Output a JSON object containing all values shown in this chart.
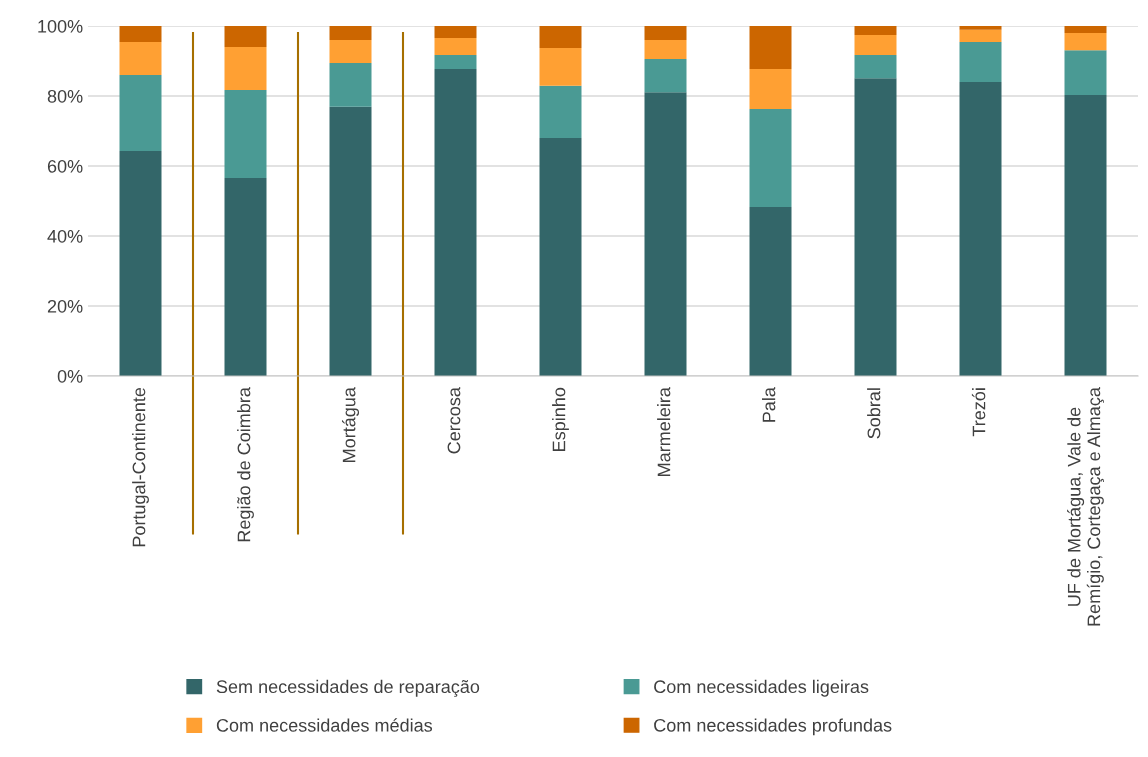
{
  "chart_data": {
    "type": "bar",
    "stacked": true,
    "categories": [
      "Portugal-Continente",
      "Região de Coimbra",
      "Mortágua",
      "Cercosa",
      "Espinho",
      "Marmeleira",
      "Pala",
      "Sobral",
      "Trezói",
      "UF de Mortágua, Vale de\nRemígio, Cortegaça e Almaça"
    ],
    "series": [
      {
        "name": "Sem necessidades de reparação",
        "color": "#336669",
        "values": [
          64.3,
          56.6,
          76.9,
          87.7,
          68.0,
          81.1,
          48.3,
          85.1,
          84.0,
          80.3
        ]
      },
      {
        "name": "Com necessidades ligeiras",
        "color": "#4a9a94",
        "values": [
          21.7,
          25.1,
          12.5,
          4.0,
          14.9,
          9.5,
          28.0,
          6.6,
          11.4,
          12.8
        ]
      },
      {
        "name": "Com necessidades médias",
        "color": "#ffa033",
        "values": [
          9.4,
          12.3,
          6.6,
          4.9,
          10.8,
          5.4,
          11.4,
          5.7,
          3.5,
          4.9
        ]
      },
      {
        "name": "Com necessidades profundas",
        "color": "#cc6600",
        "values": [
          4.6,
          6.0,
          4.0,
          3.4,
          6.3,
          4.0,
          12.3,
          2.6,
          1.1,
          2.0
        ]
      }
    ],
    "ylim": [
      0,
      100
    ],
    "yticks": [
      {
        "value": 0,
        "label": "0%"
      },
      {
        "value": 20,
        "label": "20%"
      },
      {
        "value": 40,
        "label": "40%"
      },
      {
        "value": 60,
        "label": "60%"
      },
      {
        "value": 80,
        "label": "80%"
      },
      {
        "value": 100,
        "label": "100%"
      }
    ],
    "grid": "y",
    "legend": "bottom"
  }
}
